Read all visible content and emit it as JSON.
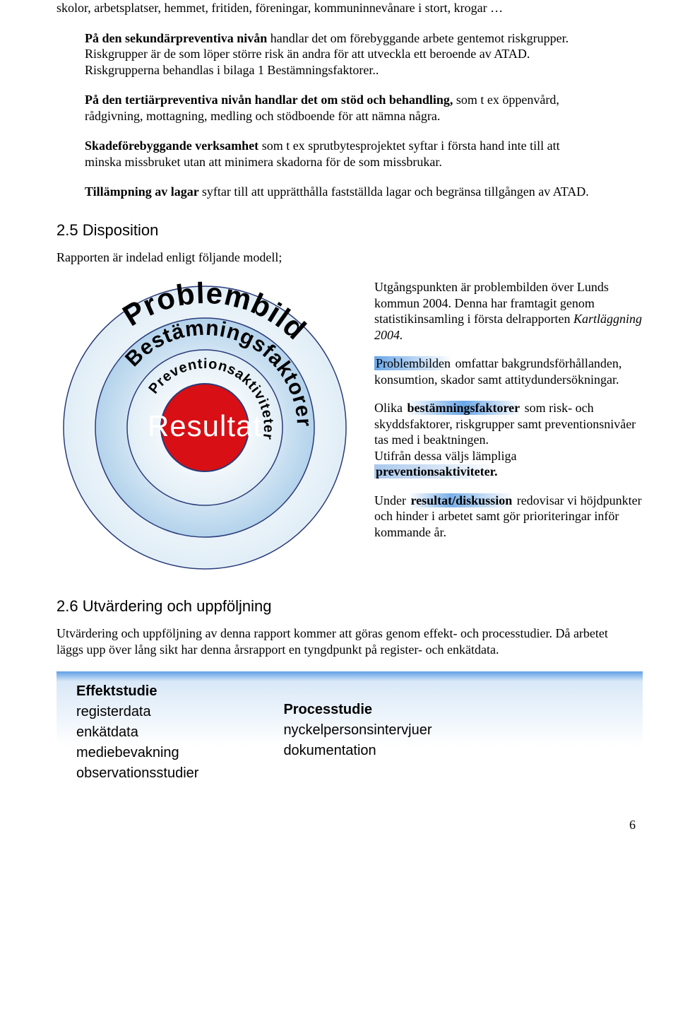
{
  "p_top": "skolor, arbetsplatser, hemmet, fritiden, föreningar, kommuninnevånare i stort, krogar …",
  "p1a": "På den sekundärpreventiva nivån",
  "p1b": " handlar det om förebyggande arbete gentemot riskgrupper. Riskgrupper är de som löper större risk än andra för att utveckla ett beroende av ATAD. Riskgrupperna behandlas i bilaga 1 Bestämningsfaktorer..",
  "p2a": "På den tertiärpreventiva nivån handlar det om stöd och behandling,",
  "p2b": " som t ex öppenvård, rådgivning, mottagning, medling och stödboende för att nämna några.",
  "p3a": "Skadeförebyggande verksamhet ",
  "p3b": "som t ex sprutbytesprojektet syftar i första hand inte till att minska missbruket utan att minimera skadorna för de som missbrukar.",
  "p4a": "Tillämpning av lagar ",
  "p4b": "syftar till att upprätthålla fastställda lagar och begränsa tillgången av ATAD.",
  "h_disposition": "2.5 Disposition",
  "p_model": "Rapporten är indelad enligt följande modell;",
  "right1a": "Utgångspunkten är problembilden över Lunds kommun 2004. Denna har framtagit genom statistikinsamling i första delrapporten ",
  "right1b": "Kartläggning 2004.",
  "right2a": "Problembilden",
  "right2b": " omfattar bakgrundsförhållanden, konsumtion, skador samt attitydundersökningar.",
  "right3a": "Olika ",
  "right3b": "bestämningsfaktorer",
  "right3c": " som risk- och skyddsfaktorer, riskgrupper samt preventionsnivåer tas med i beaktningen.",
  "right3d": "Utifrån dessa väljs lämpliga ",
  "right3e": "preventionsaktiviteter.",
  "right4a": "Under ",
  "right4b": "resultat/diskussion",
  "right4c": " redovisar vi höjdpunkter och hinder i arbetet samt gör prioriteringar inför kommande år.",
  "h_utv": "2.6 Utvärdering och uppföljning",
  "p_utv": "Utvärdering och uppföljning av denna rapport kommer att göras genom effekt- och processtudier. Då arbetet läggs upp över lång sikt har denna årsrapport en tyngdpunkt på register- och enkätdata.",
  "box": {
    "left_hdr": "Effektstudie",
    "left_1": "registerdata",
    "left_2": "enkätdata",
    "left_3": "mediebevakning",
    "left_4": "observationsstudier",
    "right_hdr": "Processtudie",
    "right_1": "nyckelpersonsintervjuer",
    "right_2": "dokumentation"
  },
  "pagenum": "6",
  "diagram": {
    "size": 420,
    "rings": [
      {
        "r": 200,
        "fill": "#d9e9f4",
        "stroke": "#2a3b7a"
      },
      {
        "r": 155,
        "fill": "#9fc7e6",
        "stroke": "#2a3b7a"
      },
      {
        "r": 110,
        "fill": "#d9e9f4",
        "stroke": "#2a3b7a"
      },
      {
        "r": 62,
        "fill": "#d80f14",
        "stroke": "#2a3b7a"
      }
    ],
    "center_text": "Resultat",
    "center_text_color": "#ffffff",
    "center_text_font": "42px Arial Black, Arial, sans-serif",
    "arc_labels": [
      {
        "text": "Problembild",
        "radius": 176,
        "start_deg": 200,
        "end_deg": 350,
        "font": "bold 42px Arial Black, Arial, sans-serif"
      },
      {
        "text": "Bestämningsfaktorer",
        "radius": 131,
        "start_deg": 185,
        "end_deg": 395,
        "font": "bold 30px Arial Black, Arial, sans-serif"
      },
      {
        "text": "Preventionsaktiviteter",
        "radius": 84,
        "start_deg": 175,
        "end_deg": 410,
        "font": "bold 20px Arial Black, Arial, sans-serif"
      }
    ]
  }
}
